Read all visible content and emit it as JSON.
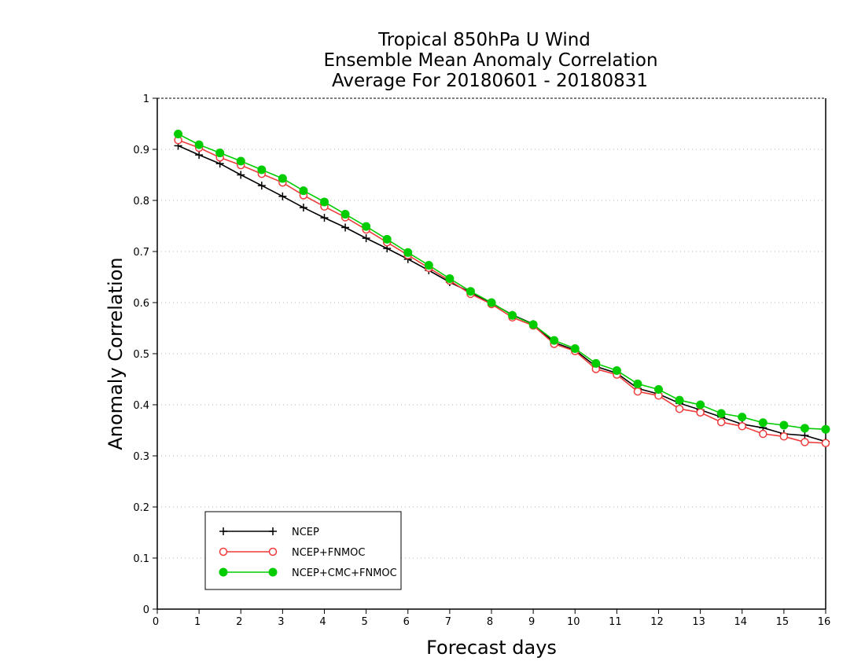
{
  "chart_data": {
    "type": "line",
    "title_lines": [
      "Tropical 850hPa U Wind",
      "Ensemble Mean Anomaly Correlation",
      "Average For 20180601 - 20180831"
    ],
    "xlabel": "Forecast days",
    "ylabel": "Anomaly Correlation",
    "xlim": [
      0,
      16
    ],
    "ylim": [
      0,
      1
    ],
    "xticks": [
      "0",
      "1",
      "2",
      "3",
      "4",
      "5",
      "6",
      "7",
      "8",
      "9",
      "10",
      "11",
      "12",
      "13",
      "14",
      "15",
      "16"
    ],
    "yticks": [
      "0",
      "0.1",
      "0.2",
      "0.3",
      "0.4",
      "0.5",
      "0.6",
      "0.7",
      "0.8",
      "0.9",
      "1"
    ],
    "grid": "horizontal dotted",
    "legend_position": "bottom-left",
    "x": [
      0.5,
      1,
      1.5,
      2,
      2.5,
      3,
      3.5,
      4,
      4.5,
      5,
      5.5,
      6,
      6.5,
      7,
      7.5,
      8,
      8.5,
      9,
      9.5,
      10,
      10.5,
      11,
      11.5,
      12,
      12.5,
      13,
      13.5,
      14,
      14.5,
      15,
      15.5,
      16
    ],
    "series": [
      {
        "name": "NCEP",
        "color": "#000000",
        "marker": "plus",
        "values": [
          0.907,
          0.889,
          0.872,
          0.85,
          0.829,
          0.808,
          0.786,
          0.766,
          0.747,
          0.726,
          0.706,
          0.685,
          0.663,
          0.64,
          0.62,
          0.599,
          0.576,
          0.558,
          0.522,
          0.507,
          0.475,
          0.462,
          0.432,
          0.421,
          0.403,
          0.39,
          0.376,
          0.362,
          0.355,
          0.343,
          0.34,
          0.328
        ]
      },
      {
        "name": "NCEP+FNMOC",
        "color": "#ee3b3b",
        "marker": "open-circle",
        "values": [
          0.918,
          0.903,
          0.884,
          0.869,
          0.852,
          0.835,
          0.81,
          0.788,
          0.767,
          0.743,
          0.718,
          0.693,
          0.668,
          0.643,
          0.617,
          0.597,
          0.571,
          0.555,
          0.519,
          0.505,
          0.47,
          0.459,
          0.426,
          0.418,
          0.392,
          0.385,
          0.366,
          0.358,
          0.343,
          0.338,
          0.327,
          0.325
        ]
      },
      {
        "name": "NCEP+CMC+FNMOC",
        "color": "#00cc00",
        "marker": "filled-circle",
        "values": [
          0.93,
          0.909,
          0.893,
          0.877,
          0.86,
          0.843,
          0.819,
          0.797,
          0.773,
          0.749,
          0.724,
          0.698,
          0.673,
          0.647,
          0.622,
          0.6,
          0.575,
          0.557,
          0.526,
          0.51,
          0.481,
          0.467,
          0.441,
          0.43,
          0.409,
          0.4,
          0.383,
          0.376,
          0.365,
          0.36,
          0.354,
          0.352
        ]
      }
    ]
  }
}
